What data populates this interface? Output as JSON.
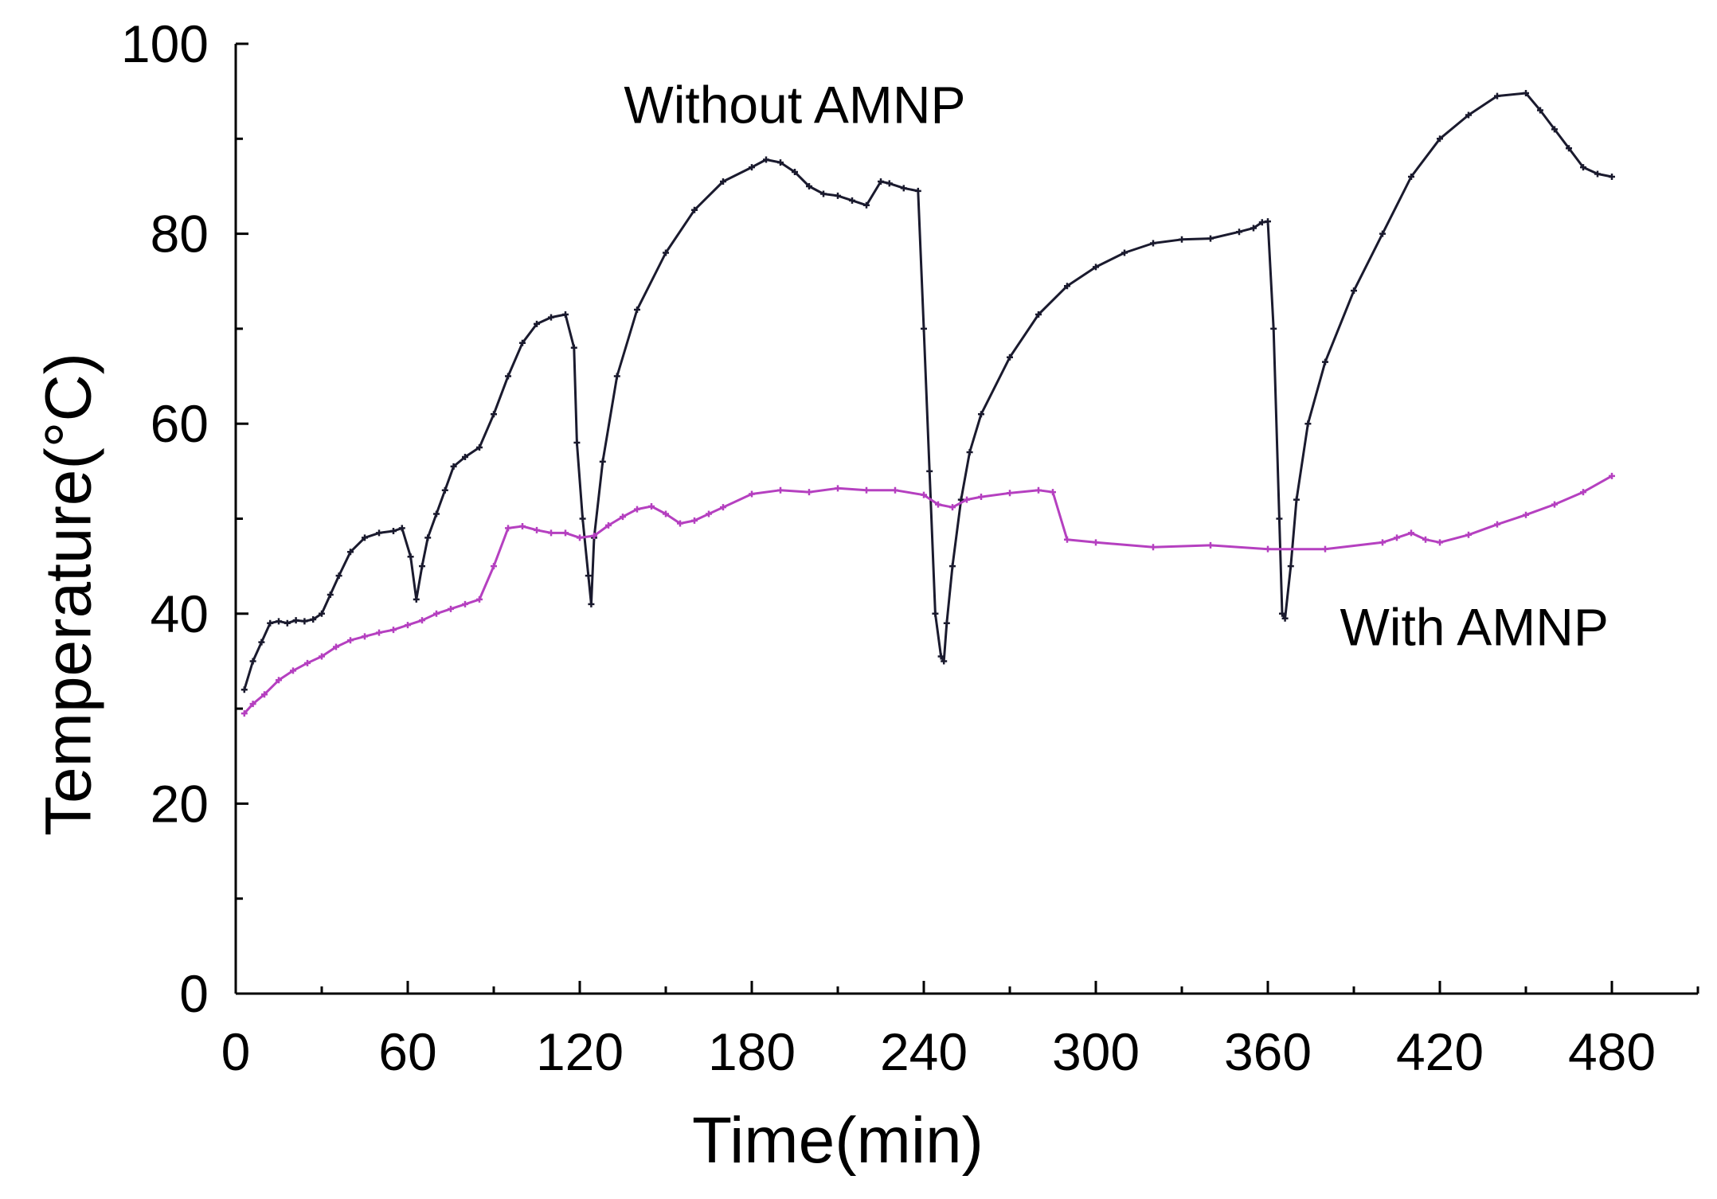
{
  "chart_data": {
    "type": "line",
    "title": "",
    "xlabel": "Time(min)",
    "ylabel": "Temperature(°C)",
    "xlim": [
      0,
      510
    ],
    "ylim": [
      0,
      100
    ],
    "xticks": [
      0,
      60,
      120,
      180,
      240,
      300,
      360,
      420,
      480
    ],
    "xticks_minor": [
      30,
      90,
      150,
      210,
      270,
      330,
      390,
      450,
      510
    ],
    "yticks": [
      0,
      20,
      40,
      60,
      80,
      100
    ],
    "yticks_minor": [
      10,
      30,
      50,
      70,
      90
    ],
    "grid": false,
    "colors": {
      "without": "#1a1a2e",
      "with": "#b540c0",
      "axis": "#000000"
    },
    "series": [
      {
        "name": "Without AMNP",
        "x": [
          3,
          6,
          9,
          12,
          15,
          18,
          21,
          24,
          27,
          30,
          33,
          36,
          40,
          45,
          50,
          55,
          58,
          61,
          63,
          65,
          67,
          70,
          73,
          76,
          80,
          85,
          90,
          95,
          100,
          105,
          110,
          115,
          118,
          119,
          121,
          123,
          124,
          125,
          128,
          133,
          140,
          150,
          160,
          170,
          180,
          185,
          190,
          195,
          200,
          205,
          210,
          215,
          220,
          225,
          228,
          233,
          238,
          240,
          242,
          244,
          246,
          247,
          248,
          250,
          253,
          256,
          260,
          270,
          280,
          290,
          300,
          310,
          320,
          330,
          340,
          350,
          355,
          358,
          360,
          362,
          364,
          365,
          366,
          368,
          370,
          374,
          380,
          390,
          400,
          410,
          420,
          430,
          440,
          450,
          455,
          460,
          465,
          470,
          475,
          480
        ],
        "y": [
          32,
          35,
          37,
          39,
          39.2,
          39,
          39.3,
          39.2,
          39.4,
          40,
          42,
          44,
          46.5,
          48,
          48.5,
          48.7,
          49,
          46,
          41.5,
          45,
          48,
          50.5,
          53,
          55.5,
          56.5,
          57.5,
          61,
          65,
          68.5,
          70.5,
          71.2,
          71.5,
          68,
          58,
          50,
          44,
          41,
          48,
          56,
          65,
          72,
          78,
          82.5,
          85.5,
          87,
          87.8,
          87.5,
          86.5,
          85,
          84.2,
          84,
          83.5,
          83,
          85.5,
          85.3,
          84.8,
          84.5,
          70,
          55,
          40,
          35.5,
          35,
          39,
          45,
          52,
          57,
          61,
          67,
          71.5,
          74.5,
          76.5,
          78,
          79,
          79.4,
          79.5,
          80.2,
          80.6,
          81.2,
          81.3,
          70,
          50,
          40,
          39.5,
          45,
          52,
          60,
          66.5,
          74,
          80,
          86,
          90,
          92.5,
          94.5,
          94.8,
          93,
          91,
          89,
          87,
          86.3,
          86
        ],
        "label": "Without AMNP",
        "label_at": [
          195,
          93.5
        ]
      },
      {
        "name": "With AMNP",
        "x": [
          3,
          6,
          10,
          15,
          20,
          25,
          30,
          35,
          40,
          45,
          50,
          55,
          60,
          65,
          70,
          75,
          80,
          85,
          90,
          95,
          100,
          105,
          110,
          115,
          120,
          125,
          130,
          135,
          140,
          145,
          150,
          155,
          160,
          165,
          170,
          180,
          190,
          200,
          210,
          220,
          230,
          240,
          245,
          250,
          255,
          260,
          270,
          280,
          285,
          290,
          300,
          320,
          340,
          360,
          380,
          400,
          405,
          410,
          415,
          420,
          430,
          440,
          450,
          460,
          470,
          480
        ],
        "y": [
          29.5,
          30.5,
          31.5,
          33,
          34,
          34.8,
          35.5,
          36.5,
          37.2,
          37.6,
          38,
          38.3,
          38.8,
          39.3,
          40,
          40.5,
          41,
          41.5,
          45,
          49,
          49.2,
          48.8,
          48.5,
          48.5,
          48,
          48.2,
          49.3,
          50.2,
          51,
          51.3,
          50.5,
          49.5,
          49.8,
          50.5,
          51.2,
          52.6,
          53,
          52.8,
          53.2,
          53,
          53,
          52.5,
          51.5,
          51.2,
          52,
          52.3,
          52.7,
          53,
          52.8,
          47.8,
          47.5,
          47,
          47.2,
          46.8,
          46.8,
          47.5,
          48,
          48.5,
          47.8,
          47.5,
          48.3,
          49.4,
          50.4,
          51.5,
          52.8,
          54.5
        ],
        "label": "With AMNP",
        "label_at": [
          432,
          38.5
        ]
      }
    ]
  }
}
